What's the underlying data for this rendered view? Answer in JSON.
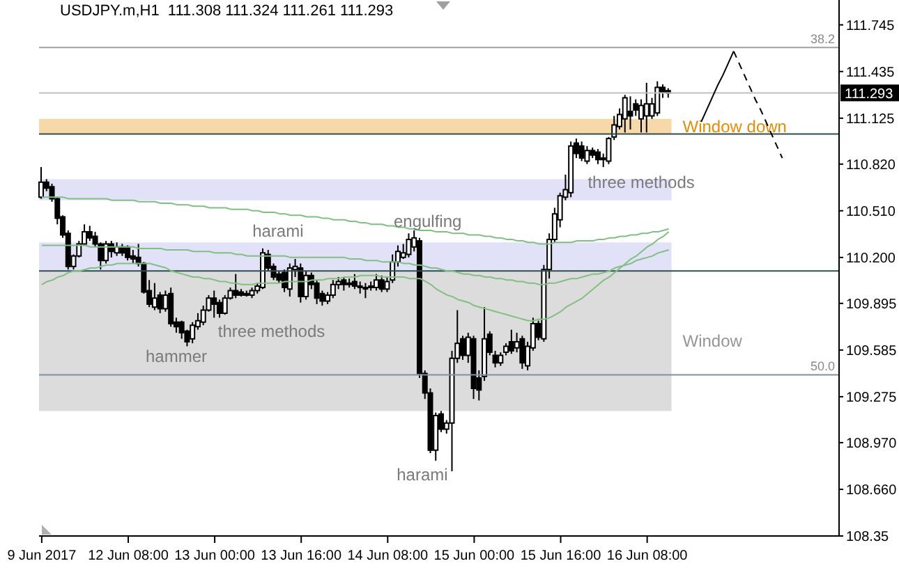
{
  "chart_data": {
    "type": "candlestick",
    "title": "USDJPY.m,H1  111.308 111.324 111.261 111.293",
    "categories": [
      "9 Jun 2017",
      null,
      null,
      null,
      null,
      null,
      null,
      null,
      null,
      null,
      null,
      null,
      null,
      null,
      null,
      null,
      "12 Jun 08:00",
      null,
      null,
      null,
      null,
      null,
      null,
      null,
      null,
      null,
      null,
      null,
      null,
      null,
      null,
      null,
      "13 Jun 00:00",
      null,
      null,
      null,
      null,
      null,
      null,
      null,
      null,
      null,
      null,
      null,
      null,
      null,
      null,
      null,
      "13 Jun 16:00",
      null,
      null,
      null,
      null,
      null,
      null,
      null,
      null,
      null,
      null,
      null,
      null,
      null,
      null,
      null,
      "14 Jun 08:00",
      null,
      null,
      null,
      null,
      null,
      null,
      null,
      null,
      null,
      null,
      null,
      null,
      null,
      null,
      null,
      "15 Jun 00:00",
      null,
      null,
      null,
      null,
      null,
      null,
      null,
      null,
      null,
      null,
      null,
      null,
      null,
      null,
      null,
      "15 Jun 16:00",
      null,
      null,
      null,
      null,
      null,
      null,
      null,
      null,
      null,
      null,
      null,
      null,
      null,
      null,
      null,
      "16 Jun 08:00",
      null,
      null,
      null,
      null,
      null,
      null,
      null,
      null,
      null,
      null,
      null,
      null,
      null,
      null,
      null,
      null,
      null,
      null,
      null,
      null,
      null,
      null,
      null,
      null,
      null,
      null,
      null,
      null,
      null,
      null,
      null,
      null,
      null,
      null,
      null
    ],
    "ylim": [
      108.35,
      111.91
    ],
    "yticks": [
      111.745,
      111.435,
      111.125,
      {
        "value": 110.82,
        "label": "110.820"
      },
      {
        "value": 110.51,
        "label": "110.510"
      },
      {
        "value": 110.2,
        "label": "110.200"
      },
      109.895,
      109.585,
      109.275,
      {
        "value": 108.97,
        "label": "108.970"
      },
      {
        "value": 108.66,
        "label": "108.660"
      },
      108.35
    ],
    "marker": "none",
    "bands": [
      {
        "axis": "y",
        "from": 111.02,
        "to": 111.12,
        "label": "Window down",
        "color": "#f7d9a8"
      },
      {
        "axis": "y",
        "from": 110.58,
        "to": 110.72,
        "color": "#e1e1f8"
      },
      {
        "axis": "y",
        "from": 110.11,
        "to": 110.3,
        "color": "#e1e1f8"
      },
      {
        "axis": "y",
        "from": 109.18,
        "to": 110.11,
        "label": "Window",
        "color": "#dcdcdc"
      }
    ],
    "ref_lines": [
      {
        "axis": "y",
        "value": 111.595,
        "color": "#a0a0a0"
      },
      {
        "axis": "y",
        "value": 109.42,
        "color": "#8090a0"
      },
      {
        "axis": "y",
        "value": 111.293,
        "label": "111.293",
        "color": "#c0c0c0"
      },
      {
        "axis": "y",
        "value": 111.02,
        "color": "#2f4f4f"
      },
      {
        "axis": "y",
        "value": 110.11,
        "color": "#2f4f4f"
      }
    ],
    "annotations": [
      {
        "text": "harami",
        "y": 110.26
      },
      "engulfing",
      "three methods",
      "hammer",
      "harami",
      "three methods",
      {
        "text": "38.2",
        "y": 111.595
      },
      {
        "text": "50.0",
        "y": 109.42
      }
    ],
    "series": [
      {
        "type": "line",
        "color": "#80c080",
        "values": [
          110.6,
          110.6,
          110.6,
          110.6,
          110.6,
          110.59,
          110.59,
          110.59,
          110.59,
          110.59,
          110.59,
          110.59,
          110.59,
          110.58,
          110.58,
          110.58,
          110.58,
          110.58,
          110.57,
          110.57,
          110.57,
          110.57,
          110.56,
          110.56,
          110.56,
          110.55,
          110.55,
          110.55,
          110.54,
          110.54,
          110.54,
          110.53,
          110.53,
          110.53,
          110.53,
          110.52,
          110.52,
          110.52,
          110.52,
          110.51,
          110.51,
          110.5,
          110.5,
          110.5,
          110.49,
          110.49,
          110.48,
          110.48,
          110.48,
          110.47,
          110.47,
          110.47,
          110.46,
          110.46,
          110.45,
          110.45,
          110.45,
          110.44,
          110.44,
          110.43,
          110.43,
          110.42,
          110.42,
          110.42,
          110.41,
          110.41,
          110.4,
          110.4,
          110.39,
          110.39,
          110.38,
          110.38,
          110.38,
          110.37,
          110.37,
          110.37,
          110.36,
          110.36,
          110.36,
          110.35,
          110.35,
          110.35,
          110.34,
          110.34,
          110.33,
          110.33,
          110.32,
          110.32,
          110.31,
          110.31,
          110.3,
          110.3,
          110.29,
          110.29,
          110.29,
          110.3,
          110.3,
          110.3,
          110.3,
          110.31,
          110.31,
          110.31,
          110.31,
          110.32,
          110.32,
          110.33,
          110.33,
          110.34,
          110.34,
          110.35,
          110.35,
          110.36,
          110.36,
          110.37,
          110.37,
          110.38,
          110.39,
          null,
          null,
          null,
          null,
          null,
          null,
          null,
          null,
          null,
          null,
          null,
          null,
          null,
          null,
          null,
          null,
          null,
          null,
          null,
          null,
          null,
          null,
          null,
          null,
          null,
          null,
          null,
          null,
          null,
          null,
          null
        ]
      },
      {
        "type": "line",
        "color": "#80c080",
        "values": [
          110.28,
          110.28,
          110.28,
          110.28,
          110.28,
          110.28,
          110.28,
          110.28,
          110.28,
          110.27,
          110.27,
          110.27,
          110.27,
          110.27,
          110.27,
          110.27,
          110.27,
          110.27,
          110.26,
          110.26,
          110.26,
          110.26,
          110.26,
          110.25,
          110.25,
          110.25,
          110.25,
          110.25,
          110.24,
          110.24,
          110.24,
          110.24,
          110.23,
          110.23,
          110.23,
          110.23,
          110.22,
          110.22,
          110.21,
          110.21,
          110.21,
          110.21,
          110.21,
          110.21,
          110.21,
          110.21,
          110.2,
          110.2,
          110.2,
          110.2,
          110.2,
          110.2,
          110.2,
          110.2,
          110.2,
          110.2,
          110.2,
          110.19,
          110.19,
          110.19,
          110.18,
          110.18,
          110.18,
          110.17,
          110.17,
          110.17,
          110.17,
          110.16,
          110.16,
          110.15,
          110.15,
          110.14,
          110.13,
          110.13,
          110.12,
          110.11,
          110.11,
          110.1,
          110.09,
          110.09,
          110.08,
          110.08,
          110.07,
          110.07,
          110.06,
          110.06,
          110.05,
          110.05,
          110.04,
          110.04,
          110.03,
          110.03,
          110.02,
          110.02,
          110.03,
          110.03,
          110.04,
          110.05,
          110.06,
          110.06,
          110.07,
          110.08,
          110.09,
          110.09,
          110.1,
          110.11,
          110.13,
          110.14,
          110.15,
          110.16,
          110.18,
          110.19,
          110.2,
          110.21,
          110.23,
          110.24,
          110.25,
          null,
          null,
          null,
          null,
          null,
          null,
          null,
          null,
          null,
          null,
          null,
          null,
          null,
          null,
          null,
          null,
          null,
          null,
          null,
          null,
          null,
          null,
          null,
          null,
          null,
          null,
          null,
          null,
          null,
          null,
          null
        ]
      },
      {
        "type": "line",
        "color": "#80c080",
        "values": [
          110.02,
          110.04,
          110.05,
          110.07,
          110.08,
          110.1,
          110.11,
          110.11,
          110.12,
          110.13,
          110.13,
          110.14,
          110.15,
          110.15,
          110.16,
          110.16,
          110.16,
          110.16,
          110.16,
          110.16,
          110.16,
          110.15,
          110.14,
          110.13,
          110.11,
          110.1,
          110.09,
          110.08,
          110.07,
          110.07,
          110.06,
          110.06,
          110.05,
          110.04,
          110.04,
          110.03,
          110.03,
          110.02,
          110.02,
          110.02,
          110.03,
          110.03,
          110.03,
          110.03,
          110.03,
          110.04,
          110.04,
          110.04,
          110.04,
          110.04,
          110.05,
          110.05,
          110.05,
          110.06,
          110.06,
          110.06,
          110.07,
          110.07,
          110.07,
          110.08,
          110.08,
          110.08,
          110.08,
          110.07,
          110.07,
          110.07,
          110.07,
          110.07,
          110.06,
          110.06,
          110.06,
          110.04,
          110.02,
          109.99,
          109.97,
          109.95,
          109.94,
          109.92,
          109.91,
          109.9,
          109.88,
          109.87,
          109.86,
          109.85,
          109.84,
          109.83,
          109.82,
          109.81,
          109.8,
          109.79,
          109.78,
          109.78,
          109.79,
          109.79,
          109.8,
          109.82,
          109.84,
          109.87,
          109.89,
          109.91,
          109.93,
          109.96,
          109.99,
          110.02,
          110.05,
          110.07,
          110.1,
          110.13,
          110.16,
          110.19,
          110.21,
          110.24,
          110.27,
          110.29,
          110.32,
          110.34,
          110.37,
          null,
          null,
          null,
          null,
          null,
          null,
          null,
          null,
          null,
          null,
          null,
          null,
          null,
          null,
          null,
          null,
          null,
          null,
          null,
          null,
          null,
          null,
          null,
          null,
          null,
          null,
          null,
          null,
          null,
          null,
          null
        ]
      },
      {
        "type": "line",
        "color": "#000000",
        "line_style": "solid",
        "values": [
          null,
          null,
          null,
          null,
          null,
          null,
          null,
          null,
          null,
          null,
          null,
          null,
          null,
          null,
          null,
          null,
          null,
          null,
          null,
          null,
          null,
          null,
          null,
          null,
          null,
          null,
          null,
          null,
          null,
          null,
          null,
          null,
          null,
          null,
          null,
          null,
          null,
          null,
          null,
          null,
          null,
          null,
          null,
          null,
          null,
          null,
          null,
          null,
          null,
          null,
          null,
          null,
          null,
          null,
          null,
          null,
          null,
          null,
          null,
          null,
          null,
          null,
          null,
          null,
          null,
          null,
          null,
          null,
          null,
          null,
          null,
          null,
          null,
          null,
          null,
          null,
          null,
          null,
          null,
          null,
          null,
          null,
          null,
          null,
          null,
          null,
          null,
          null,
          null,
          null,
          null,
          null,
          null,
          null,
          null,
          null,
          null,
          null,
          null,
          null,
          null,
          null,
          null,
          null,
          null,
          null,
          null,
          null,
          null,
          null,
          null,
          null,
          null,
          null,
          null,
          null,
          null,
          null,
          null,
          null,
          null,
          null,
          111.1,
          111.18,
          111.26,
          111.34,
          111.41,
          111.49,
          111.57,
          null,
          null,
          null,
          null,
          null,
          null,
          null,
          null,
          null,
          null,
          null,
          null,
          null,
          null,
          null,
          null,
          null,
          null,
          null
        ]
      },
      {
        "type": "line",
        "color": "#000000",
        "line_style": "dashed",
        "values": [
          null,
          null,
          null,
          null,
          null,
          null,
          null,
          null,
          null,
          null,
          null,
          null,
          null,
          null,
          null,
          null,
          null,
          null,
          null,
          null,
          null,
          null,
          null,
          null,
          null,
          null,
          null,
          null,
          null,
          null,
          null,
          null,
          null,
          null,
          null,
          null,
          null,
          null,
          null,
          null,
          null,
          null,
          null,
          null,
          null,
          null,
          null,
          null,
          null,
          null,
          null,
          null,
          null,
          null,
          null,
          null,
          null,
          null,
          null,
          null,
          null,
          null,
          null,
          null,
          null,
          null,
          null,
          null,
          null,
          null,
          null,
          null,
          null,
          null,
          null,
          null,
          null,
          null,
          null,
          null,
          null,
          null,
          null,
          null,
          null,
          null,
          null,
          null,
          null,
          null,
          null,
          null,
          null,
          null,
          null,
          null,
          null,
          null,
          null,
          null,
          null,
          null,
          null,
          null,
          null,
          null,
          null,
          null,
          null,
          null,
          null,
          null,
          null,
          null,
          null,
          null,
          null,
          null,
          null,
          null,
          null,
          null,
          null,
          null,
          null,
          null,
          null,
          null,
          111.57,
          111.49,
          111.41,
          111.33,
          111.25,
          111.18,
          111.1,
          111.02,
          110.94,
          110.86,
          null,
          null,
          null,
          null,
          null,
          null,
          null,
          null,
          null,
          null
        ]
      },
      {
        "color": "#000000",
        "ohlc": [
          [
            110.6,
            110.8,
            110.59,
            110.7
          ],
          [
            110.7,
            110.72,
            110.64,
            110.66
          ],
          [
            110.67,
            110.69,
            110.57,
            110.59
          ],
          [
            110.59,
            110.6,
            110.42,
            110.46
          ],
          [
            110.47,
            110.48,
            110.33,
            110.35
          ],
          [
            110.36,
            110.38,
            110.12,
            110.14
          ],
          [
            110.14,
            110.22,
            110.12,
            110.21
          ],
          [
            110.21,
            110.31,
            110.2,
            110.29
          ],
          [
            110.29,
            110.42,
            110.28,
            110.37
          ],
          [
            110.37,
            110.41,
            110.31,
            110.33
          ],
          [
            110.34,
            110.37,
            110.27,
            110.29
          ],
          [
            110.29,
            110.3,
            110.12,
            110.18
          ],
          [
            110.18,
            110.31,
            110.16,
            110.29
          ],
          [
            110.29,
            110.31,
            110.2,
            110.24
          ],
          [
            110.23,
            110.3,
            110.21,
            110.27
          ],
          [
            110.27,
            110.29,
            110.21,
            110.23
          ],
          [
            110.27,
            110.28,
            110.18,
            110.2
          ],
          [
            110.21,
            110.25,
            110.16,
            110.19
          ],
          [
            110.2,
            110.29,
            110.14,
            110.16
          ],
          [
            110.16,
            110.17,
            109.96,
            109.97
          ],
          [
            109.98,
            110.05,
            109.87,
            109.89
          ],
          [
            109.87,
            110.03,
            109.85,
            109.93
          ],
          [
            109.95,
            109.97,
            109.83,
            109.86
          ],
          [
            109.86,
            109.98,
            109.84,
            109.95
          ],
          [
            109.96,
            110.0,
            109.74,
            109.76
          ],
          [
            109.77,
            109.8,
            109.7,
            109.74
          ],
          [
            109.77,
            109.78,
            109.66,
            109.7
          ],
          [
            109.71,
            109.72,
            109.61,
            109.64
          ],
          [
            109.66,
            109.77,
            109.63,
            109.75
          ],
          [
            109.74,
            109.83,
            109.72,
            109.78
          ],
          [
            109.77,
            109.88,
            109.75,
            109.85
          ],
          [
            109.85,
            109.95,
            109.84,
            109.93
          ],
          [
            109.93,
            109.98,
            109.8,
            109.89
          ],
          [
            109.9,
            109.92,
            109.8,
            109.83
          ],
          [
            109.83,
            109.95,
            109.82,
            109.93
          ],
          [
            109.93,
            110.0,
            109.92,
            109.98
          ],
          [
            109.98,
            110.09,
            109.93,
            109.95
          ],
          [
            109.97,
            109.99,
            109.94,
            109.95
          ],
          [
            109.96,
            109.98,
            109.94,
            109.95
          ],
          [
            109.95,
            110.0,
            109.93,
            109.98
          ],
          [
            109.98,
            110.03,
            109.96,
            110.01
          ],
          [
            110.0,
            110.26,
            109.99,
            110.23
          ],
          [
            110.22,
            110.25,
            110.11,
            110.13
          ],
          [
            110.14,
            110.16,
            110.05,
            110.07
          ],
          [
            110.09,
            110.11,
            110.03,
            110.05
          ],
          [
            110.1,
            110.12,
            109.97,
            110.0
          ],
          [
            109.99,
            110.16,
            109.94,
            110.13
          ],
          [
            110.12,
            110.19,
            110.07,
            110.14
          ],
          [
            110.13,
            110.16,
            109.9,
            109.94
          ],
          [
            109.94,
            110.11,
            109.92,
            110.08
          ],
          [
            110.08,
            110.1,
            109.99,
            110.02
          ],
          [
            110.03,
            110.05,
            109.89,
            109.93
          ],
          [
            109.96,
            109.98,
            109.88,
            109.91
          ],
          [
            109.91,
            109.97,
            109.89,
            109.95
          ],
          [
            109.95,
            110.05,
            109.93,
            110.02
          ],
          [
            110.02,
            110.07,
            109.99,
            110.04
          ],
          [
            110.05,
            110.07,
            109.98,
            110.02
          ],
          [
            110.03,
            110.06,
            110.0,
            110.02
          ],
          [
            110.04,
            110.09,
            109.99,
            110.01
          ],
          [
            110.01,
            110.04,
            109.96,
            110.0
          ],
          [
            110.0,
            110.03,
            109.93,
            110.0
          ],
          [
            110.0,
            110.04,
            109.98,
            110.01
          ],
          [
            110.0,
            110.09,
            109.98,
            110.05
          ],
          [
            110.05,
            110.08,
            109.97,
            109.99
          ],
          [
            109.99,
            110.07,
            109.97,
            110.04
          ],
          [
            110.05,
            110.22,
            110.03,
            110.17
          ],
          [
            110.17,
            110.28,
            110.14,
            110.24
          ],
          [
            110.2,
            110.29,
            110.19,
            110.23
          ],
          [
            110.22,
            110.36,
            110.2,
            110.32
          ],
          [
            110.27,
            110.38,
            110.24,
            110.33
          ],
          [
            110.31,
            110.33,
            109.4,
            109.43
          ],
          [
            109.43,
            109.45,
            109.26,
            109.3
          ],
          [
            109.3,
            109.33,
            108.9,
            108.92
          ],
          [
            108.92,
            109.17,
            108.85,
            109.15
          ],
          [
            109.16,
            109.18,
            109.04,
            109.06
          ],
          [
            109.06,
            109.12,
            109.03,
            109.1
          ],
          [
            109.1,
            109.58,
            108.78,
            109.53
          ],
          [
            109.53,
            109.85,
            109.5,
            109.63
          ],
          [
            109.66,
            109.68,
            109.52,
            109.55
          ],
          [
            109.55,
            109.7,
            109.5,
            109.67
          ],
          [
            109.66,
            109.68,
            109.26,
            109.33
          ],
          [
            109.4,
            109.45,
            109.25,
            109.32
          ],
          [
            109.41,
            109.87,
            109.38,
            109.66
          ],
          [
            109.69,
            109.71,
            109.55,
            109.57
          ],
          [
            109.55,
            109.58,
            109.47,
            109.5
          ],
          [
            109.5,
            109.57,
            109.48,
            109.55
          ],
          [
            109.57,
            109.63,
            109.55,
            109.61
          ],
          [
            109.64,
            109.72,
            109.56,
            109.58
          ],
          [
            109.6,
            109.7,
            109.57,
            109.64
          ],
          [
            109.66,
            109.68,
            109.46,
            109.5
          ],
          [
            109.48,
            109.64,
            109.45,
            109.61
          ],
          [
            109.6,
            109.8,
            109.58,
            109.76
          ],
          [
            109.76,
            109.78,
            109.65,
            109.67
          ],
          [
            109.66,
            110.15,
            109.64,
            110.12
          ],
          [
            110.12,
            110.36,
            110.06,
            110.32
          ],
          [
            110.32,
            110.53,
            110.3,
            110.49
          ],
          [
            110.45,
            110.63,
            110.4,
            110.61
          ],
          [
            110.6,
            110.75,
            110.58,
            110.65
          ],
          [
            110.63,
            110.97,
            110.6,
            110.94
          ],
          [
            110.96,
            110.99,
            110.86,
            110.89
          ],
          [
            110.94,
            110.97,
            110.84,
            110.86
          ],
          [
            110.84,
            110.94,
            110.82,
            110.91
          ],
          [
            110.91,
            110.93,
            110.86,
            110.88
          ],
          [
            110.9,
            110.92,
            110.82,
            110.85
          ],
          [
            110.86,
            110.89,
            110.8,
            110.85
          ],
          [
            110.84,
            111.0,
            110.82,
            110.99
          ],
          [
            111.0,
            111.14,
            110.98,
            111.08
          ],
          [
            111.07,
            111.19,
            111.05,
            111.15
          ],
          [
            111.12,
            111.28,
            111.03,
            111.26
          ],
          [
            111.17,
            111.27,
            111.05,
            111.14
          ],
          [
            111.22,
            111.25,
            111.14,
            111.18
          ],
          [
            111.12,
            111.25,
            111.03,
            111.21
          ],
          [
            111.14,
            111.36,
            111.03,
            111.22
          ],
          [
            111.14,
            111.26,
            111.12,
            111.22
          ],
          [
            111.16,
            111.37,
            111.14,
            111.33
          ],
          [
            111.33,
            111.35,
            111.26,
            111.3
          ],
          [
            111.308,
            111.324,
            111.261,
            111.293
          ],
          null,
          null,
          null,
          null,
          null,
          null,
          null,
          null,
          null,
          null,
          null,
          null,
          null,
          null,
          null,
          null,
          null,
          null,
          null,
          null,
          null,
          null,
          null,
          null,
          null,
          null,
          null,
          null,
          null,
          null,
          null
        ]
      }
    ]
  }
}
